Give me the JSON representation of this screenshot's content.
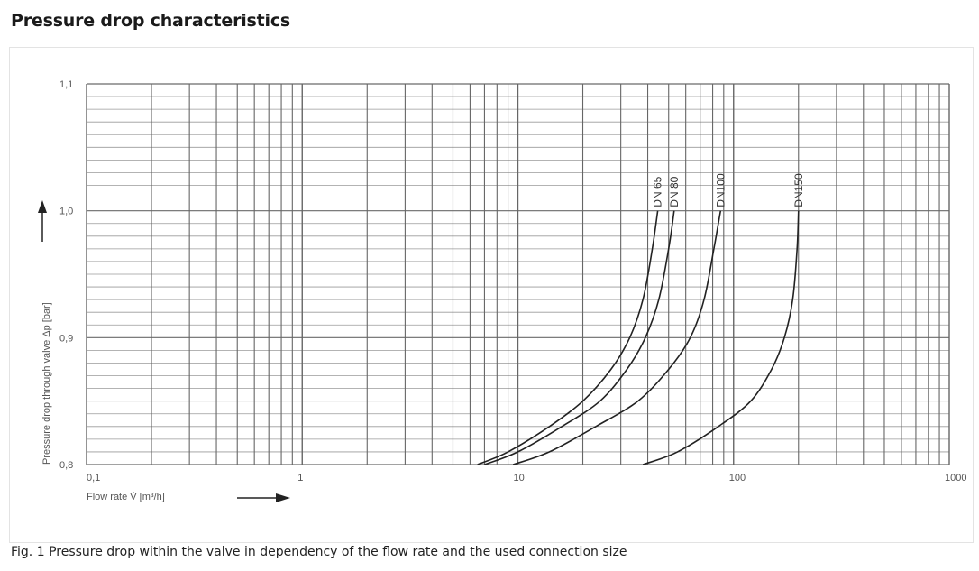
{
  "title": "Pressure drop characteristics",
  "caption": "Fig. 1 Pressure drop within the valve in dependency of the flow rate and the used connection size",
  "chart_data": {
    "type": "line",
    "xscale": "log",
    "xlim": [
      0.1,
      1000
    ],
    "ylim": [
      0.8,
      1.1
    ],
    "xlabel": "Flow rate V̇  [m³/h]",
    "ylabel": "Pressure drop through valve Δp  [bar]",
    "x_ticks": [
      {
        "value": 0.1,
        "label": "0,1"
      },
      {
        "value": 1,
        "label": "1"
      },
      {
        "value": 10,
        "label": "10"
      },
      {
        "value": 100,
        "label": "100"
      },
      {
        "value": 1000,
        "label": "1000"
      }
    ],
    "y_ticks": [
      {
        "value": 0.8,
        "label": "0,8"
      },
      {
        "value": 0.9,
        "label": "0,9"
      },
      {
        "value": 1.0,
        "label": "1,0"
      },
      {
        "value": 1.1,
        "label": "1,1"
      }
    ],
    "grid": true,
    "series": [
      {
        "name": "DN 65",
        "x": [
          6.5,
          9,
          14,
          20,
          27,
          33,
          38,
          42,
          44.5
        ],
        "y": [
          0.8,
          0.81,
          0.83,
          0.85,
          0.875,
          0.9,
          0.93,
          0.97,
          1.0
        ]
      },
      {
        "name": "DN 80",
        "x": [
          7,
          10,
          16,
          24,
          32,
          39,
          45,
          50,
          53
        ],
        "y": [
          0.8,
          0.81,
          0.83,
          0.85,
          0.875,
          0.9,
          0.93,
          0.97,
          1.0
        ]
      },
      {
        "name": "DN100",
        "x": [
          9.5,
          14,
          23,
          36,
          50,
          63,
          73,
          81,
          87
        ],
        "y": [
          0.8,
          0.81,
          0.83,
          0.85,
          0.875,
          0.9,
          0.93,
          0.97,
          1.0
        ]
      },
      {
        "name": "DN150",
        "x": [
          38,
          55,
          85,
          120,
          150,
          172,
          188,
          197,
          200
        ],
        "y": [
          0.8,
          0.81,
          0.83,
          0.85,
          0.875,
          0.9,
          0.93,
          0.97,
          1.0
        ]
      }
    ]
  }
}
